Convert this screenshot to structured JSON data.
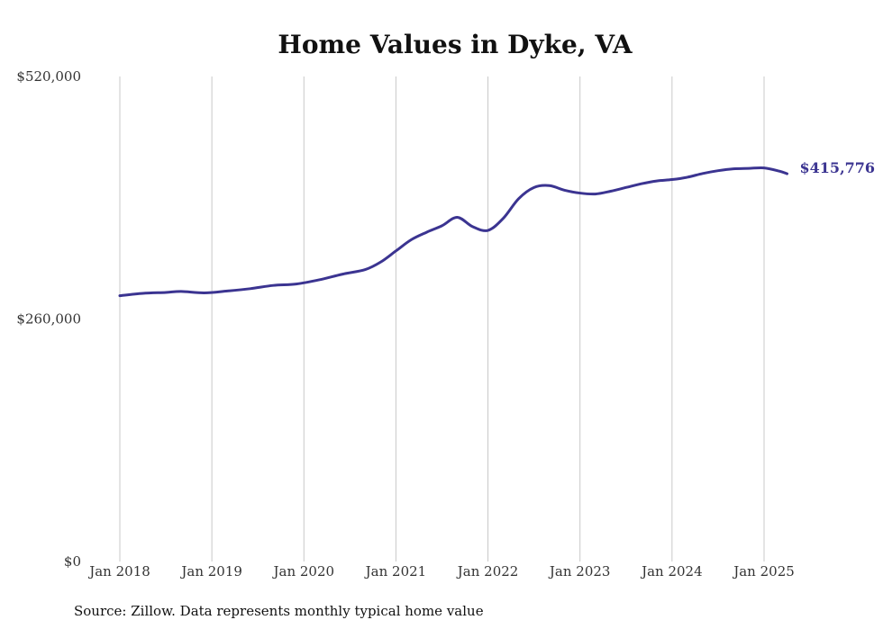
{
  "chart_data": {
    "type": "line",
    "title": "Home Values in Dyke, VA",
    "xlabel": "",
    "ylabel": "",
    "ylim": [
      0,
      520000
    ],
    "y_ticks": [
      {
        "value": 0,
        "label": "$0"
      },
      {
        "value": 260000,
        "label": "$260,000"
      },
      {
        "value": 520000,
        "label": "$520,000"
      }
    ],
    "x_ticks": [
      {
        "date": "2018-01",
        "label": "Jan 2018"
      },
      {
        "date": "2019-01",
        "label": "Jan 2019"
      },
      {
        "date": "2020-01",
        "label": "Jan 2020"
      },
      {
        "date": "2021-01",
        "label": "Jan 2021"
      },
      {
        "date": "2022-01",
        "label": "Jan 2022"
      },
      {
        "date": "2023-01",
        "label": "Jan 2023"
      },
      {
        "date": "2024-01",
        "label": "Jan 2024"
      },
      {
        "date": "2025-01",
        "label": "Jan 2025"
      }
    ],
    "xlim": [
      "2018-01",
      "2025-04"
    ],
    "grid": "vertical",
    "color": "#3b3491",
    "series": [
      {
        "name": "",
        "points": [
          {
            "x": "2018-01",
            "y": 285000
          },
          {
            "x": "2018-04",
            "y": 287500
          },
          {
            "x": "2018-07",
            "y": 288500
          },
          {
            "x": "2018-09",
            "y": 289500
          },
          {
            "x": "2018-12",
            "y": 288000
          },
          {
            "x": "2019-03",
            "y": 290000
          },
          {
            "x": "2019-06",
            "y": 292500
          },
          {
            "x": "2019-09",
            "y": 296000
          },
          {
            "x": "2019-12",
            "y": 297500
          },
          {
            "x": "2020-03",
            "y": 302000
          },
          {
            "x": "2020-06",
            "y": 308000
          },
          {
            "x": "2020-09",
            "y": 313000
          },
          {
            "x": "2020-11",
            "y": 321000
          },
          {
            "x": "2021-01",
            "y": 333000
          },
          {
            "x": "2021-03",
            "y": 345000
          },
          {
            "x": "2021-05",
            "y": 353000
          },
          {
            "x": "2021-07",
            "y": 360000
          },
          {
            "x": "2021-09",
            "y": 369000
          },
          {
            "x": "2021-11",
            "y": 359000
          },
          {
            "x": "2022-01",
            "y": 355000
          },
          {
            "x": "2022-03",
            "y": 368000
          },
          {
            "x": "2022-05",
            "y": 389000
          },
          {
            "x": "2022-07",
            "y": 401000
          },
          {
            "x": "2022-09",
            "y": 403000
          },
          {
            "x": "2022-11",
            "y": 398000
          },
          {
            "x": "2023-01",
            "y": 395000
          },
          {
            "x": "2023-03",
            "y": 394000
          },
          {
            "x": "2023-05",
            "y": 397000
          },
          {
            "x": "2023-07",
            "y": 401000
          },
          {
            "x": "2023-09",
            "y": 405000
          },
          {
            "x": "2023-11",
            "y": 408000
          },
          {
            "x": "2024-01",
            "y": 409500
          },
          {
            "x": "2024-03",
            "y": 412000
          },
          {
            "x": "2024-05",
            "y": 416000
          },
          {
            "x": "2024-07",
            "y": 419000
          },
          {
            "x": "2024-09",
            "y": 421000
          },
          {
            "x": "2024-11",
            "y": 421500
          },
          {
            "x": "2025-01",
            "y": 422000
          },
          {
            "x": "2025-03",
            "y": 418500
          },
          {
            "x": "2025-04",
            "y": 415776
          }
        ]
      }
    ],
    "annotations": [
      {
        "text": "$415,776",
        "at": "last-point"
      }
    ]
  },
  "footer": {
    "source": "Source: Zillow. Data represents monthly typical home value"
  }
}
